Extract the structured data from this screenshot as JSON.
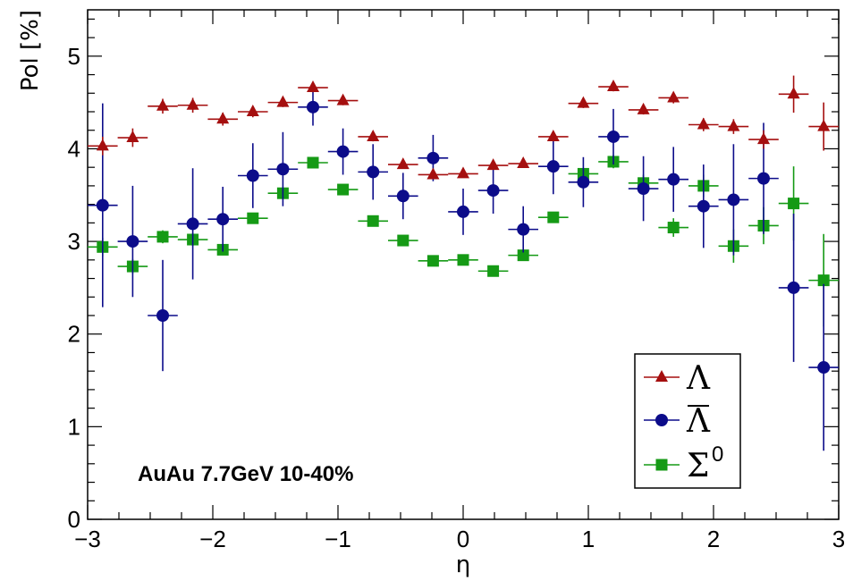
{
  "chart_data": {
    "type": "scatter",
    "xlabel": "η",
    "ylabel": "Pol [%]",
    "xlim": [
      -3,
      3
    ],
    "ylim": [
      0,
      5.5
    ],
    "x_ticks": [
      -3,
      -2,
      -1,
      0,
      1,
      2,
      3
    ],
    "y_ticks": [
      0,
      1,
      2,
      3,
      4,
      5
    ],
    "x_tick_labels": [
      "−3",
      "−2",
      "−1",
      "0",
      "1",
      "2",
      "3"
    ],
    "y_tick_labels": [
      "0",
      "1",
      "2",
      "3",
      "4",
      "5"
    ],
    "annotation": "AuAu 7.7GeV 10-40%",
    "legend_position": "bottom-right",
    "x_bin_half_width": 0.12,
    "x": [
      -2.88,
      -2.64,
      -2.4,
      -2.16,
      -1.92,
      -1.68,
      -1.44,
      -1.2,
      -0.96,
      -0.72,
      -0.48,
      -0.24,
      0.0,
      0.24,
      0.48,
      0.72,
      0.96,
      1.2,
      1.44,
      1.68,
      1.92,
      2.16,
      2.4,
      2.64,
      2.88
    ],
    "series": [
      {
        "name": "Λ",
        "marker": "triangle",
        "color": "#a50f0f",
        "y": [
          4.03,
          4.12,
          4.46,
          4.47,
          4.32,
          4.4,
          4.5,
          4.66,
          4.52,
          4.13,
          3.83,
          3.72,
          3.73,
          3.82,
          3.84,
          4.13,
          4.49,
          4.67,
          4.42,
          4.55,
          4.26,
          4.24,
          4.1,
          4.59,
          4.24
        ],
        "err": [
          0.1,
          0.1,
          0.08,
          0.08,
          0.07,
          0.06,
          0.05,
          0.05,
          0.05,
          0.05,
          0.04,
          0.04,
          0.04,
          0.04,
          0.04,
          0.05,
          0.05,
          0.05,
          0.05,
          0.06,
          0.07,
          0.08,
          0.1,
          0.2,
          0.26
        ]
      },
      {
        "name": "Λ̄",
        "marker": "circle",
        "color": "#0c0c8a",
        "y": [
          3.39,
          3.0,
          2.2,
          3.19,
          3.24,
          3.71,
          3.78,
          4.45,
          3.97,
          3.75,
          3.49,
          3.9,
          3.32,
          3.55,
          3.13,
          3.81,
          3.64,
          4.13,
          3.57,
          3.67,
          3.38,
          3.45,
          3.68,
          2.5,
          1.64
        ],
        "err": [
          1.1,
          0.6,
          0.6,
          0.6,
          0.35,
          0.35,
          0.4,
          0.2,
          0.25,
          0.3,
          0.25,
          0.25,
          0.25,
          0.25,
          0.25,
          0.3,
          0.27,
          0.3,
          0.35,
          0.35,
          0.45,
          0.6,
          0.6,
          0.8,
          0.9
        ]
      },
      {
        "name": "Σ",
        "name_superscript": "0",
        "marker": "square",
        "color": "#159a15",
        "y": [
          2.94,
          2.73,
          3.05,
          3.02,
          2.91,
          3.25,
          3.52,
          3.85,
          3.56,
          3.22,
          3.01,
          2.79,
          2.8,
          2.68,
          2.85,
          3.26,
          3.73,
          3.86,
          3.63,
          3.15,
          3.6,
          2.95,
          3.17,
          3.41,
          2.58
        ],
        "err": [
          0.1,
          0.08,
          0.07,
          0.07,
          0.06,
          0.05,
          0.05,
          0.05,
          0.05,
          0.04,
          0.04,
          0.04,
          0.04,
          0.04,
          0.04,
          0.05,
          0.06,
          0.07,
          0.09,
          0.1,
          0.12,
          0.18,
          0.2,
          0.4,
          0.5
        ]
      }
    ]
  }
}
